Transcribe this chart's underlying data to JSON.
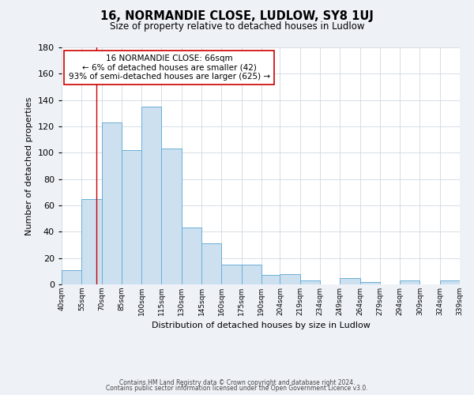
{
  "title": "16, NORMANDIE CLOSE, LUDLOW, SY8 1UJ",
  "subtitle": "Size of property relative to detached houses in Ludlow",
  "xlabel": "Distribution of detached houses by size in Ludlow",
  "ylabel": "Number of detached properties",
  "bar_left_edges": [
    40,
    55,
    70,
    85,
    100,
    115,
    130,
    145,
    160,
    175,
    190,
    204,
    219,
    234,
    249,
    264,
    279,
    294,
    309,
    324
  ],
  "bar_widths": [
    15,
    15,
    15,
    15,
    15,
    15,
    15,
    15,
    15,
    15,
    14,
    15,
    15,
    15,
    15,
    15,
    15,
    15,
    15,
    15
  ],
  "bar_heights": [
    11,
    65,
    123,
    102,
    135,
    103,
    43,
    31,
    15,
    15,
    7,
    8,
    3,
    0,
    5,
    2,
    0,
    3,
    0,
    3
  ],
  "tick_labels": [
    "40sqm",
    "55sqm",
    "70sqm",
    "85sqm",
    "100sqm",
    "115sqm",
    "130sqm",
    "145sqm",
    "160sqm",
    "175sqm",
    "190sqm",
    "204sqm",
    "219sqm",
    "234sqm",
    "249sqm",
    "264sqm",
    "279sqm",
    "294sqm",
    "309sqm",
    "324sqm",
    "339sqm"
  ],
  "bar_color": "#cde0f0",
  "bar_edge_color": "#6aaed6",
  "ylim": [
    0,
    180
  ],
  "yticks": [
    0,
    20,
    40,
    60,
    80,
    100,
    120,
    140,
    160,
    180
  ],
  "vline_x": 66,
  "vline_color": "#cc0000",
  "annotation_text_line1": "16 NORMANDIE CLOSE: 66sqm",
  "annotation_text_line2": "← 6% of detached houses are smaller (42)",
  "annotation_text_line3": "93% of semi-detached houses are larger (625) →",
  "footer_line1": "Contains HM Land Registry data © Crown copyright and database right 2024.",
  "footer_line2": "Contains public sector information licensed under the Open Government Licence v3.0.",
  "background_color": "#eef2f7",
  "plot_bg_color": "#ffffff",
  "grid_color": "#d0d8e0"
}
